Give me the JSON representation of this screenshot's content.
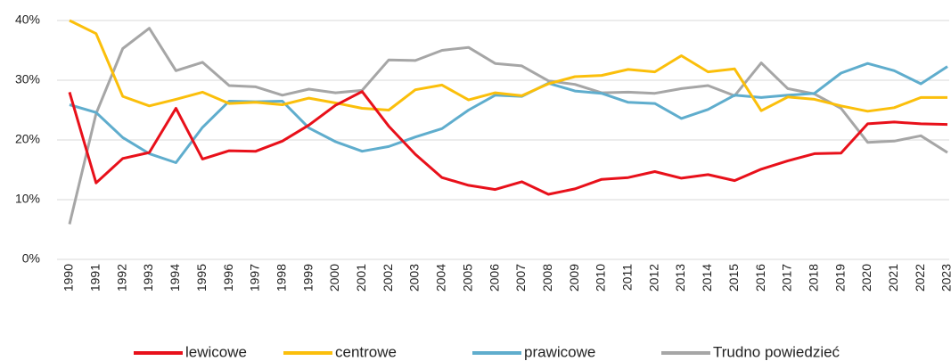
{
  "chart_data": {
    "type": "line",
    "categories": [
      "1990",
      "1991",
      "1992",
      "1993",
      "1994",
      "1995",
      "1996",
      "1997",
      "1998",
      "1999",
      "2000",
      "2001",
      "2002",
      "2003",
      "2004",
      "2005",
      "2006",
      "2007",
      "2008",
      "2009",
      "2010",
      "2011",
      "2012",
      "2013",
      "2014",
      "2015",
      "2016",
      "2017",
      "2018",
      "2019",
      "2020",
      "2021",
      "2022",
      "2023"
    ],
    "series": [
      {
        "name": "lewicowe",
        "color": "#e8101a",
        "values": [
          28.0,
          12.8,
          16.9,
          17.9,
          25.3,
          16.8,
          18.2,
          18.1,
          19.8,
          22.5,
          25.8,
          28.1,
          22.3,
          17.6,
          13.7,
          12.4,
          11.7,
          13.0,
          10.9,
          11.8,
          13.4,
          13.7,
          14.7,
          13.6,
          14.2,
          13.2,
          15.1,
          16.5,
          17.7,
          17.8,
          22.7,
          23.0,
          22.7,
          22.6
        ]
      },
      {
        "name": "centrowe",
        "color": "#fbbf0b",
        "values": [
          40.0,
          37.8,
          27.3,
          25.7,
          26.8,
          28.0,
          26.1,
          26.3,
          25.9,
          27.0,
          26.2,
          25.3,
          25.0,
          28.4,
          29.2,
          26.7,
          27.9,
          27.4,
          29.4,
          30.6,
          30.8,
          31.8,
          31.4,
          34.1,
          31.4,
          31.9,
          24.9,
          27.2,
          26.8,
          25.7,
          24.8,
          25.4,
          27.1,
          27.1
        ]
      },
      {
        "name": "prawicowe",
        "color": "#5fadcd",
        "values": [
          25.9,
          24.6,
          20.4,
          17.7,
          16.2,
          22.1,
          26.5,
          26.4,
          26.5,
          22.0,
          19.7,
          18.1,
          18.9,
          20.5,
          21.9,
          25.0,
          27.5,
          27.3,
          29.5,
          28.2,
          27.8,
          26.3,
          26.1,
          23.6,
          25.1,
          27.5,
          27.1,
          27.5,
          27.8,
          31.2,
          32.8,
          31.6,
          29.4,
          32.3
        ]
      },
      {
        "name": "Trudno powiedzieć",
        "color": "#a6a6a6",
        "values": [
          5.9,
          24.4,
          35.3,
          38.7,
          31.6,
          33.0,
          29.1,
          28.9,
          27.5,
          28.5,
          27.9,
          28.3,
          33.4,
          33.3,
          35.0,
          35.5,
          32.8,
          32.4,
          29.9,
          29.3,
          27.9,
          28.0,
          27.8,
          28.6,
          29.1,
          27.4,
          32.9,
          28.6,
          27.7,
          25.3,
          19.6,
          19.8,
          20.7,
          17.9
        ]
      }
    ],
    "ylim": [
      0,
      40
    ],
    "yticks": [
      {
        "value": 0,
        "label": "0%"
      },
      {
        "value": 10,
        "label": "10%"
      },
      {
        "value": 20,
        "label": "20%"
      },
      {
        "value": 30,
        "label": "30%"
      },
      {
        "value": 40,
        "label": "40%"
      }
    ],
    "grid": true,
    "legend": "bottom"
  }
}
